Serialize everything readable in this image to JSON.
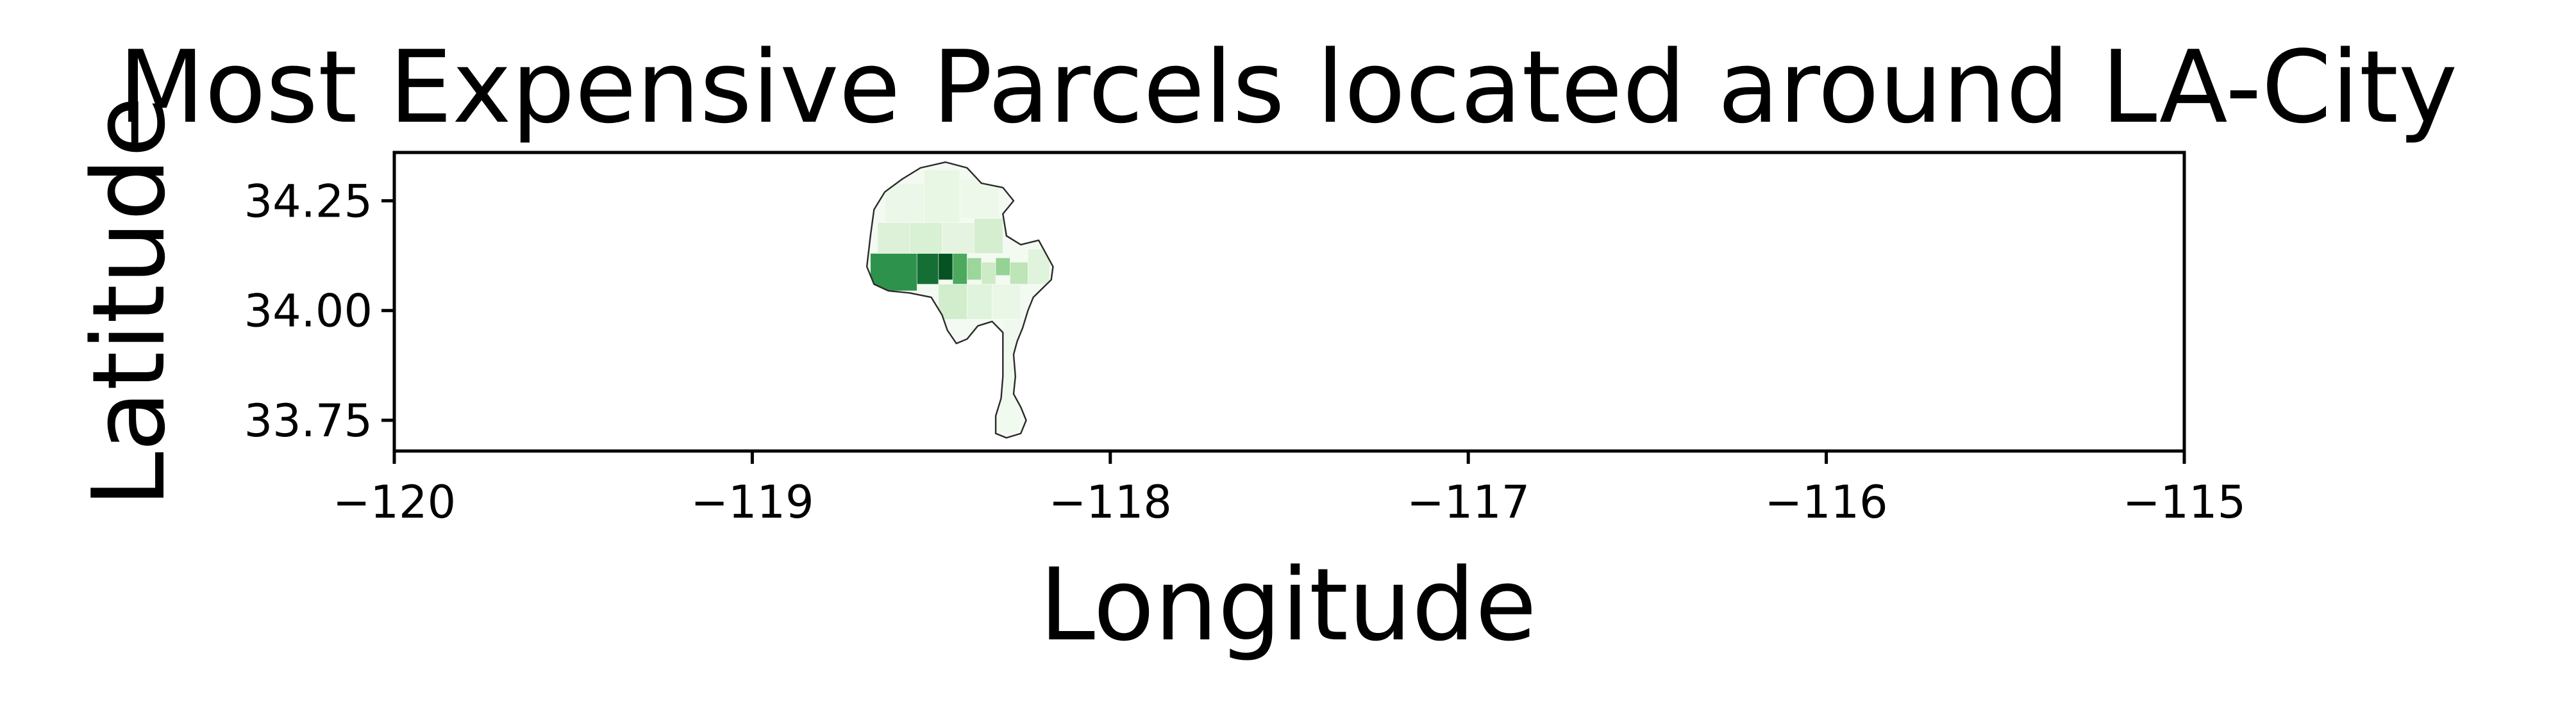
{
  "chart_data": {
    "type": "map",
    "title": "Most Expensive Parcels located around LA-City",
    "xlabel": "Longitude",
    "ylabel": "Latitude",
    "xlim": [
      -120,
      -115
    ],
    "ylim": [
      33.68,
      34.36
    ],
    "grid": false,
    "legend": "none",
    "x_ticks": [
      -120,
      -119,
      -118,
      -117,
      -116,
      -115
    ],
    "x_tick_labels": [
      "−120",
      "−119",
      "−118",
      "−117",
      "−116",
      "−115"
    ],
    "y_ticks": [
      33.75,
      34.0,
      34.25
    ],
    "y_tick_labels": [
      "33.75",
      "34.00",
      "34.25"
    ],
    "colormap": "Greens",
    "colors": {
      "boundary": "#2b2b2b",
      "low": "#f7fcf5",
      "mid": "#74c476",
      "high": "#00441b"
    },
    "boundary_lonlat": [
      [
        -118.67,
        34.17
      ],
      [
        -118.66,
        34.23
      ],
      [
        -118.63,
        34.27
      ],
      [
        -118.58,
        34.3
      ],
      [
        -118.53,
        34.325
      ],
      [
        -118.46,
        34.338
      ],
      [
        -118.4,
        34.325
      ],
      [
        -118.36,
        34.29
      ],
      [
        -118.3,
        34.28
      ],
      [
        -118.27,
        34.25
      ],
      [
        -118.3,
        34.22
      ],
      [
        -118.29,
        34.17
      ],
      [
        -118.25,
        34.15
      ],
      [
        -118.2,
        34.16
      ],
      [
        -118.18,
        34.13
      ],
      [
        -118.16,
        34.1
      ],
      [
        -118.165,
        34.07
      ],
      [
        -118.19,
        34.05
      ],
      [
        -118.215,
        34.03
      ],
      [
        -118.23,
        34.0
      ],
      [
        -118.245,
        33.96
      ],
      [
        -118.26,
        33.93
      ],
      [
        -118.27,
        33.9
      ],
      [
        -118.265,
        33.85
      ],
      [
        -118.27,
        33.81
      ],
      [
        -118.25,
        33.78
      ],
      [
        -118.235,
        33.75
      ],
      [
        -118.25,
        33.72
      ],
      [
        -118.29,
        33.71
      ],
      [
        -118.32,
        33.72
      ],
      [
        -118.32,
        33.76
      ],
      [
        -118.305,
        33.8
      ],
      [
        -118.3,
        33.85
      ],
      [
        -118.3,
        33.9
      ],
      [
        -118.3,
        33.95
      ],
      [
        -118.33,
        33.975
      ],
      [
        -118.37,
        33.965
      ],
      [
        -118.4,
        33.935
      ],
      [
        -118.43,
        33.925
      ],
      [
        -118.455,
        33.955
      ],
      [
        -118.47,
        33.99
      ],
      [
        -118.5,
        34.03
      ],
      [
        -118.56,
        34.04
      ],
      [
        -118.62,
        34.045
      ],
      [
        -118.66,
        34.06
      ],
      [
        -118.68,
        34.1
      ],
      [
        -118.67,
        34.17
      ]
    ],
    "districts": [
      {
        "lon": [
          -118.67,
          -118.54
        ],
        "lat": [
          34.045,
          34.13
        ],
        "value": 0.72
      },
      {
        "lon": [
          -118.54,
          -118.48
        ],
        "lat": [
          34.06,
          34.13
        ],
        "value": 0.85
      },
      {
        "lon": [
          -118.48,
          -118.44
        ],
        "lat": [
          34.07,
          34.13
        ],
        "value": 0.95
      },
      {
        "lon": [
          -118.44,
          -118.4
        ],
        "lat": [
          34.06,
          34.13
        ],
        "value": 0.62
      },
      {
        "lon": [
          -118.4,
          -118.36
        ],
        "lat": [
          34.07,
          34.12
        ],
        "value": 0.38
      },
      {
        "lon": [
          -118.36,
          -118.32
        ],
        "lat": [
          34.06,
          34.11
        ],
        "value": 0.22
      },
      {
        "lon": [
          -118.32,
          -118.28
        ],
        "lat": [
          34.08,
          34.12
        ],
        "value": 0.4
      },
      {
        "lon": [
          -118.28,
          -118.23
        ],
        "lat": [
          34.06,
          34.11
        ],
        "value": 0.28
      },
      {
        "lon": [
          -118.23,
          -118.17
        ],
        "lat": [
          34.06,
          34.14
        ],
        "value": 0.12
      },
      {
        "lon": [
          -118.65,
          -118.56
        ],
        "lat": [
          34.13,
          34.2
        ],
        "value": 0.14
      },
      {
        "lon": [
          -118.56,
          -118.47
        ],
        "lat": [
          34.13,
          34.2
        ],
        "value": 0.16
      },
      {
        "lon": [
          -118.47,
          -118.38
        ],
        "lat": [
          34.13,
          34.2
        ],
        "value": 0.1
      },
      {
        "lon": [
          -118.38,
          -118.3
        ],
        "lat": [
          34.13,
          34.21
        ],
        "value": 0.18
      },
      {
        "lon": [
          -118.63,
          -118.52
        ],
        "lat": [
          34.2,
          34.29
        ],
        "value": 0.06
      },
      {
        "lon": [
          -118.52,
          -118.42
        ],
        "lat": [
          34.2,
          34.32
        ],
        "value": 0.08
      },
      {
        "lon": [
          -118.42,
          -118.31
        ],
        "lat": [
          34.21,
          34.3
        ],
        "value": 0.05
      },
      {
        "lon": [
          -118.48,
          -118.4
        ],
        "lat": [
          33.98,
          34.06
        ],
        "value": 0.2
      },
      {
        "lon": [
          -118.4,
          -118.33
        ],
        "lat": [
          33.98,
          34.06
        ],
        "value": 0.12
      },
      {
        "lon": [
          -118.33,
          -118.25
        ],
        "lat": [
          33.98,
          34.06
        ],
        "value": 0.07
      },
      {
        "lon": [
          -118.3,
          -118.24
        ],
        "lat": [
          33.9,
          33.98
        ],
        "value": 0.04
      },
      {
        "lon": [
          -118.31,
          -118.25
        ],
        "lat": [
          33.72,
          33.9
        ],
        "value": 0.03
      }
    ]
  }
}
